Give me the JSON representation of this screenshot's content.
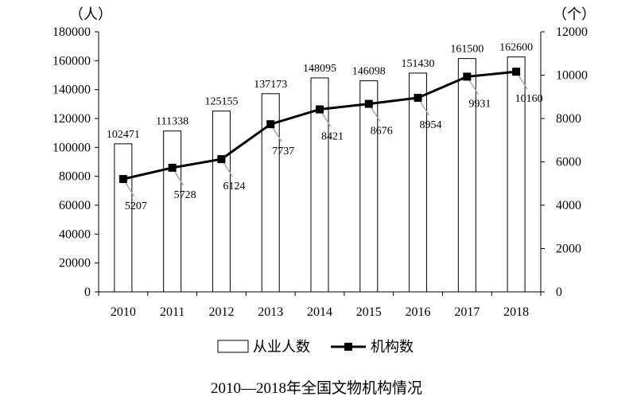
{
  "chart_data": {
    "type": "bar",
    "title": "2010—2018年全国文物机构情况",
    "categories": [
      "2010",
      "2011",
      "2012",
      "2013",
      "2014",
      "2015",
      "2016",
      "2017",
      "2018"
    ],
    "y_left": {
      "unit": "（人）",
      "ylim": [
        0,
        180000
      ],
      "ticks": [
        "0",
        "20000",
        "40000",
        "60000",
        "80000",
        "100000",
        "120000",
        "140000",
        "160000",
        "180000"
      ]
    },
    "y_right": {
      "unit": "（个）",
      "ylim": [
        0,
        12000
      ],
      "ticks": [
        "0",
        "2000",
        "4000",
        "6000",
        "8000",
        "10000",
        "12000"
      ]
    },
    "series": [
      {
        "name": "从业人数",
        "type": "bar",
        "axis": "left",
        "values": [
          102471,
          111338,
          125155,
          137173,
          148095,
          146098,
          151430,
          161500,
          162600
        ],
        "labels": [
          "102471",
          "111338",
          "125155",
          "137173",
          "148095",
          "146098",
          "151430",
          "161500",
          "162600"
        ]
      },
      {
        "name": "机构数",
        "type": "line",
        "axis": "right",
        "values": [
          5207,
          5728,
          6124,
          7737,
          8421,
          8676,
          8954,
          9931,
          10160
        ],
        "labels": [
          "5207",
          "5728",
          "6124",
          "7737",
          "8421",
          "8676",
          "8954",
          "9931",
          "10160"
        ]
      }
    ],
    "grid": false,
    "legend_position": "bottom"
  }
}
